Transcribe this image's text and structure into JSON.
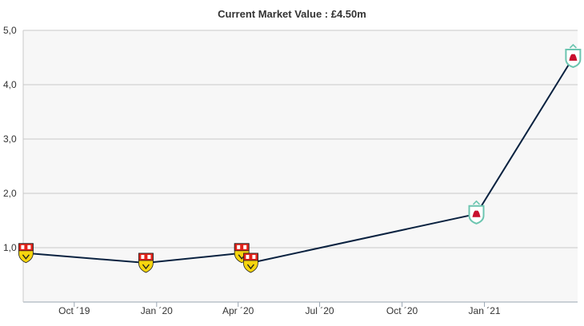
{
  "chart_data": {
    "type": "line",
    "title": "Current Market Value : £4.50m",
    "xlabel": "",
    "ylabel": "",
    "ylim": [
      0,
      5
    ],
    "y_ticks": [
      "1,0",
      "2,0",
      "3,0",
      "4,0",
      "5,0"
    ],
    "y_tick_values": [
      1,
      2,
      3,
      4,
      5
    ],
    "x_ticks": [
      "Oct ´19",
      "Jan ´20",
      "Apr ´20",
      "Jul ´20",
      "Oct ´20",
      "Jan ´21"
    ],
    "x_tick_dates": [
      "2019-10-01",
      "2020-01-01",
      "2020-04-01",
      "2020-07-01",
      "2020-10-01",
      "2021-01-01"
    ],
    "x_range": [
      "2019-08-05",
      "2021-04-15"
    ],
    "grid": true,
    "legend": "none",
    "series": [
      {
        "color": "#0a2240",
        "points": [
          {
            "x": "2019-08-08",
            "y": 0.9,
            "club": "stuttgart"
          },
          {
            "x": "2019-12-20",
            "y": 0.72,
            "club": "stuttgart"
          },
          {
            "x": "2020-04-05",
            "y": 0.9,
            "club": "stuttgart"
          },
          {
            "x": "2020-04-15",
            "y": 0.72,
            "club": "stuttgart"
          },
          {
            "x": "2020-12-23",
            "y": 1.62,
            "club": "liverpool"
          },
          {
            "x": "2021-04-10",
            "y": 4.5,
            "club": "liverpool"
          }
        ]
      }
    ],
    "club_colors": {
      "stuttgart": {
        "top": "#e32219",
        "bottom": "#f6d50f",
        "trim": "#ffffff"
      },
      "liverpool": {
        "top": "#c8102e",
        "bottom": "#c8102e",
        "trim": "#6cc5b0"
      }
    }
  }
}
